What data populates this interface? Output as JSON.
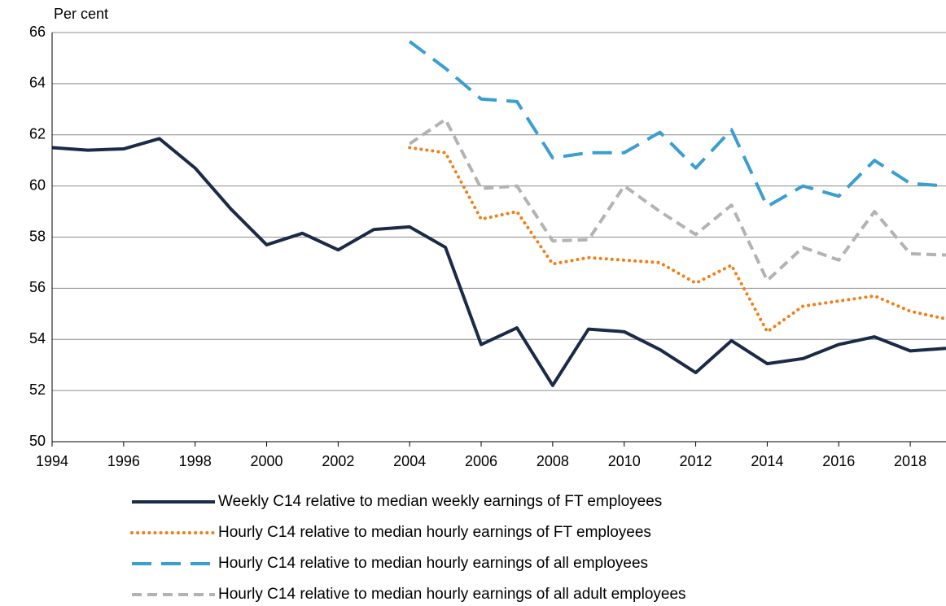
{
  "chart_data": {
    "type": "line",
    "y_label": "Per cent",
    "x": [
      1994,
      1995,
      1996,
      1997,
      1998,
      1999,
      2000,
      2001,
      2002,
      2003,
      2004,
      2005,
      2006,
      2007,
      2008,
      2009,
      2010,
      2011,
      2012,
      2013,
      2014,
      2015,
      2016,
      2017,
      2018,
      2019
    ],
    "xlim": [
      1994,
      2019
    ],
    "xticks": [
      1994,
      1996,
      1998,
      2000,
      2002,
      2004,
      2006,
      2008,
      2010,
      2012,
      2014,
      2016,
      2018
    ],
    "ylim": [
      50,
      66
    ],
    "yticks": [
      50,
      52,
      54,
      56,
      58,
      60,
      62,
      64,
      66
    ],
    "grid": true,
    "legend": "bottom",
    "series": [
      {
        "name": "Weekly C14 relative to median weekly earnings of FT employees",
        "color": "#1b2a47",
        "style": "solid",
        "values": [
          61.5,
          61.4,
          61.45,
          61.85,
          60.7,
          59.1,
          57.7,
          58.15,
          57.5,
          58.3,
          58.4,
          57.6,
          53.8,
          54.45,
          52.2,
          54.4,
          54.3,
          53.6,
          52.7,
          53.95,
          53.05,
          53.25,
          53.8,
          54.1,
          53.55,
          53.65
        ]
      },
      {
        "name": "Hourly C14 relative to median hourly earnings of FT employees",
        "color": "#f07f17",
        "style": "dotted",
        "values": [
          null,
          null,
          null,
          null,
          null,
          null,
          null,
          null,
          null,
          null,
          61.5,
          61.3,
          58.7,
          59.0,
          56.95,
          57.2,
          57.1,
          57.0,
          56.2,
          56.9,
          54.3,
          55.3,
          55.5,
          55.7,
          55.1,
          54.8
        ]
      },
      {
        "name": "Hourly C14 relative to median hourly earnings of all employees",
        "color": "#3a9fcf",
        "style": "long-dash",
        "values": [
          null,
          null,
          null,
          null,
          null,
          null,
          null,
          null,
          null,
          null,
          65.65,
          64.6,
          63.4,
          63.3,
          61.1,
          61.3,
          61.3,
          62.1,
          60.7,
          62.2,
          59.2,
          60.0,
          59.6,
          61.0,
          60.1,
          60.0
        ]
      },
      {
        "name": "Hourly C14 relative to median hourly earnings of all adult employees",
        "color": "#b3b3b3",
        "style": "dash",
        "values": [
          null,
          null,
          null,
          null,
          null,
          null,
          null,
          null,
          null,
          null,
          61.65,
          62.6,
          59.9,
          60.0,
          57.85,
          57.9,
          60.0,
          59.0,
          58.1,
          59.25,
          56.3,
          57.6,
          57.1,
          59.0,
          57.35,
          57.3
        ]
      }
    ]
  }
}
